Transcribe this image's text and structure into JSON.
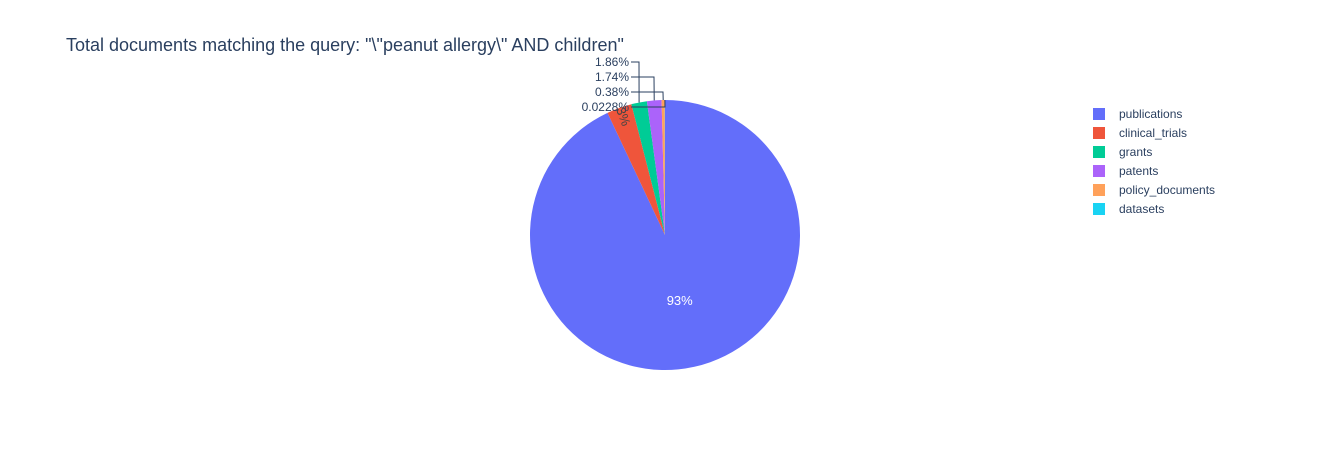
{
  "chart_data": {
    "type": "pie",
    "title": "Total documents matching the query: \"\\\"peanut allergy\\\" AND children\"",
    "slices": [
      {
        "label": "publications",
        "percent": 93,
        "percent_label": "93%",
        "color": "#636efa"
      },
      {
        "label": "clinical_trials",
        "percent": 3,
        "percent_label": "3%",
        "color": "#ef553b"
      },
      {
        "label": "grants",
        "percent": 1.86,
        "percent_label": "1.86%",
        "color": "#00cc96"
      },
      {
        "label": "patents",
        "percent": 1.74,
        "percent_label": "1.74%",
        "color": "#ab63fa"
      },
      {
        "label": "policy_documents",
        "percent": 0.38,
        "percent_label": "0.38%",
        "color": "#ffa15a"
      },
      {
        "label": "datasets",
        "percent": 0.0228,
        "percent_label": "0.0228%",
        "color": "#19d3f3"
      }
    ],
    "legend_position": "right",
    "start": "top",
    "direction": "clockwise"
  }
}
